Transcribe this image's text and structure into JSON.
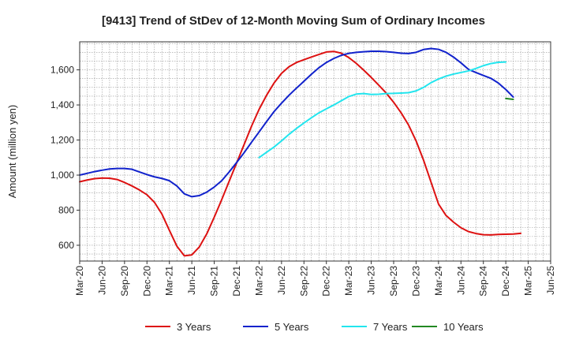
{
  "chart_data": {
    "type": "line",
    "title": "[9413]  Trend of StDev of 12-Month Moving Sum of Ordinary Incomes",
    "xlabel": "",
    "ylabel": "Amount (million yen)",
    "ylim": [
      510,
      1760
    ],
    "yticks": [
      600,
      800,
      1000,
      1200,
      1400,
      1600
    ],
    "ytick_labels": [
      "600",
      "800",
      "1,000",
      "1,200",
      "1,400",
      "1,600"
    ],
    "xlim": [
      0,
      63
    ],
    "xticks": [
      0,
      3,
      6,
      9,
      12,
      15,
      18,
      21,
      24,
      27,
      30,
      33,
      36,
      39,
      42,
      45,
      48,
      51,
      54,
      57,
      60,
      63
    ],
    "xtick_labels": [
      "Mar-20",
      "Jun-20",
      "Sep-20",
      "Dec-20",
      "Mar-21",
      "Jun-21",
      "Sep-21",
      "Dec-21",
      "Mar-22",
      "Jun-22",
      "Sep-22",
      "Dec-22",
      "Mar-23",
      "Jun-23",
      "Sep-23",
      "Dec-23",
      "Mar-24",
      "Jun-24",
      "Sep-24",
      "Dec-24",
      "Mar-25",
      "Jun-25"
    ],
    "grid": true,
    "legend_position": "bottom",
    "series": [
      {
        "name": "3 Years",
        "color": "#dd1111",
        "start": 0,
        "values": [
          962,
          972,
          980,
          983,
          982,
          975,
          958,
          938,
          915,
          888,
          845,
          778,
          685,
          595,
          540,
          545,
          590,
          665,
          760,
          860,
          965,
          1070,
          1175,
          1280,
          1375,
          1455,
          1525,
          1580,
          1618,
          1642,
          1658,
          1673,
          1688,
          1702,
          1705,
          1695,
          1670,
          1637,
          1598,
          1557,
          1513,
          1468,
          1415,
          1355,
          1285,
          1195,
          1085,
          960,
          835,
          770,
          732,
          700,
          678,
          667,
          660,
          659,
          662,
          663,
          664,
          668
        ]
      },
      {
        "name": "5 Years",
        "color": "#1122cc",
        "start": 0,
        "values": [
          1000,
          1010,
          1020,
          1028,
          1035,
          1038,
          1038,
          1033,
          1018,
          1003,
          990,
          981,
          968,
          938,
          893,
          877,
          883,
          903,
          932,
          968,
          1018,
          1072,
          1128,
          1188,
          1246,
          1305,
          1362,
          1410,
          1455,
          1496,
          1535,
          1575,
          1612,
          1642,
          1665,
          1683,
          1694,
          1700,
          1703,
          1706,
          1706,
          1704,
          1700,
          1695,
          1693,
          1700,
          1716,
          1722,
          1717,
          1700,
          1673,
          1640,
          1603,
          1585,
          1568,
          1552,
          1525,
          1488,
          1445
        ]
      },
      {
        "name": "7 Years",
        "color": "#22e5ee",
        "start": 24,
        "values": [
          1100,
          1130,
          1160,
          1195,
          1232,
          1266,
          1297,
          1327,
          1355,
          1378,
          1400,
          1424,
          1448,
          1462,
          1465,
          1460,
          1461,
          1465,
          1466,
          1468,
          1470,
          1480,
          1500,
          1527,
          1548,
          1564,
          1576,
          1585,
          1594,
          1608,
          1624,
          1636,
          1643,
          1645
        ]
      },
      {
        "name": "10 Years",
        "color": "#228822",
        "start": 57,
        "values": [
          1437,
          1432
        ]
      }
    ]
  }
}
